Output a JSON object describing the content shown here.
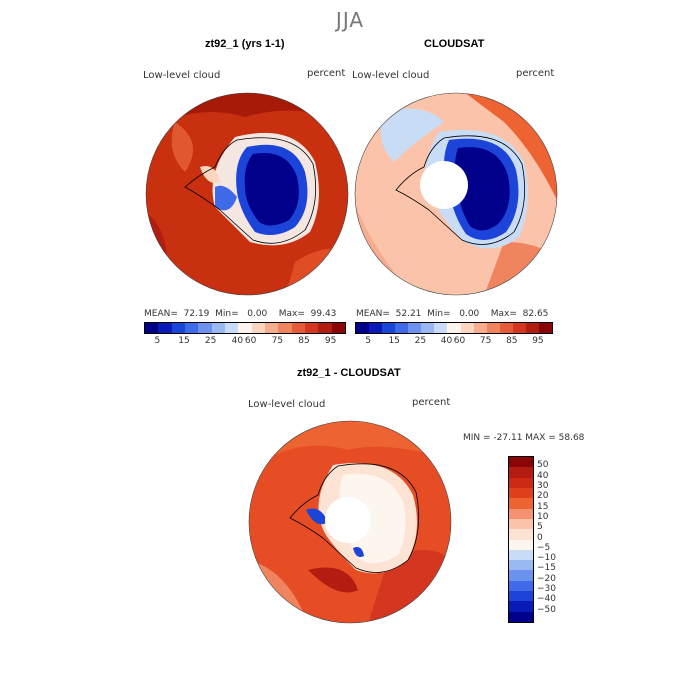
{
  "season": "JJA",
  "panels": [
    {
      "id": "model",
      "title": "zt92_1 (yrs 1-1)",
      "variable": "Low-level cloud",
      "units": "percent",
      "stats": {
        "mean_label": "MEAN=",
        "mean": "72.19",
        "min_label": "Min=",
        "min": "0.00",
        "max_label": "Max=",
        "max": "99.43"
      }
    },
    {
      "id": "obs",
      "title": "CLOUDSAT",
      "variable": "Low-level cloud",
      "units": "percent",
      "stats": {
        "mean_label": "MEAN=",
        "mean": "52.21",
        "min_label": "Min=",
        "min": "0.00",
        "max_label": "Max=",
        "max": "82.65"
      }
    },
    {
      "id": "diff",
      "title": "zt92_1 - CLOUDSAT",
      "variable": "Low-level cloud",
      "units": "percent",
      "range": "MIN = -27.11 MAX =  58.68"
    }
  ],
  "colorbar_abs": {
    "colors": [
      "#00008b",
      "#0a1ab8",
      "#1c44d8",
      "#3f6ae8",
      "#6a92ee",
      "#9ab8f2",
      "#c9dcf6",
      "#fdf5ec",
      "#fbd5bf",
      "#f7ac8d",
      "#f0845f",
      "#e55a38",
      "#d43620",
      "#b31c10",
      "#8a0505"
    ],
    "ticks": [
      "5",
      "15",
      "25",
      "40",
      "60",
      "75",
      "85",
      "95"
    ]
  },
  "colorbar_diff": {
    "colors": [
      "#8a0505",
      "#b31c10",
      "#cc2a14",
      "#e0401c",
      "#ee6332",
      "#f59272",
      "#fbc4aa",
      "#fde3d4",
      "#fdf6ee",
      "#c9dcf6",
      "#9ab8f2",
      "#6a92ee",
      "#3f6ae8",
      "#1c44d8",
      "#0a1ab8",
      "#00008b"
    ],
    "ticks": [
      "50",
      "40",
      "30",
      "20",
      "15",
      "10",
      "5",
      "0",
      "−5",
      "−10",
      "−15",
      "−20",
      "−30",
      "−40",
      "−50"
    ]
  }
}
